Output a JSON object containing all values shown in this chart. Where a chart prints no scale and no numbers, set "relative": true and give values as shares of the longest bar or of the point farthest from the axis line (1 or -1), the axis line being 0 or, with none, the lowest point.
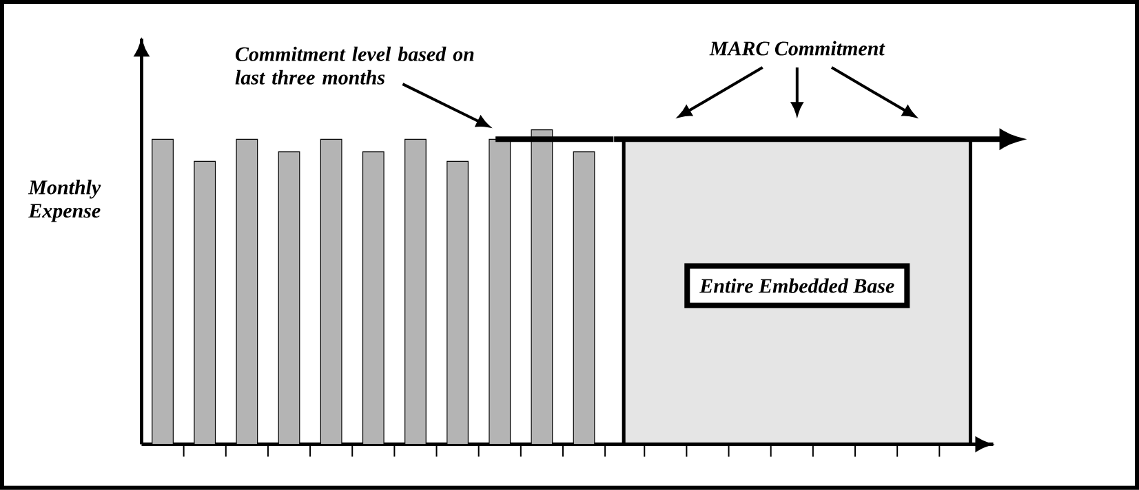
{
  "chart_data": [
    {
      "type": "bar",
      "relative": true,
      "ylabel": "Monthly Expense",
      "color": "#b4b4b4",
      "categories": [
        null,
        null,
        null,
        null,
        null,
        null,
        null,
        null,
        null,
        null,
        null
      ],
      "values": [
        0.97,
        0.9,
        0.97,
        0.93,
        0.97,
        0.93,
        0.97,
        0.9,
        0.97,
        1,
        0.93
      ],
      "ref_lines": [
        {
          "axis": "y",
          "value": 0.97,
          "label": "Commitment level based on last three months",
          "color": "#000000"
        }
      ]
    },
    {
      "type": "other",
      "annotations": [
        "MARC Commitment",
        "Entire Embedded Base"
      ]
    }
  ]
}
